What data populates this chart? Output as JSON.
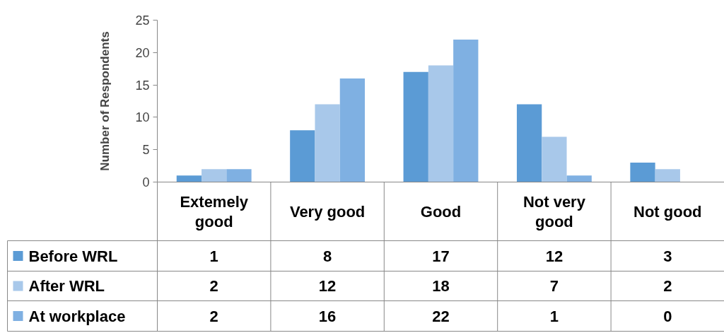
{
  "chart_data": {
    "type": "bar",
    "ylabel": "Number of Respondents",
    "categories": [
      "Extemely good",
      "Very good",
      "Good",
      "Not very good",
      "Not good"
    ],
    "series": [
      {
        "name": "Before WRL",
        "color": "#5b9bd5",
        "values": [
          1,
          8,
          17,
          12,
          3
        ]
      },
      {
        "name": "After WRL",
        "color": "#a8c8ea",
        "values": [
          2,
          12,
          18,
          7,
          2
        ]
      },
      {
        "name": "At workplace",
        "color": "#7fb0e2",
        "values": [
          2,
          16,
          22,
          1,
          0
        ]
      }
    ],
    "ylim": [
      0,
      25
    ],
    "yticks": [
      0,
      5,
      10,
      15,
      20,
      25
    ],
    "data_labels": true,
    "legend": "bottom",
    "grid": false
  }
}
